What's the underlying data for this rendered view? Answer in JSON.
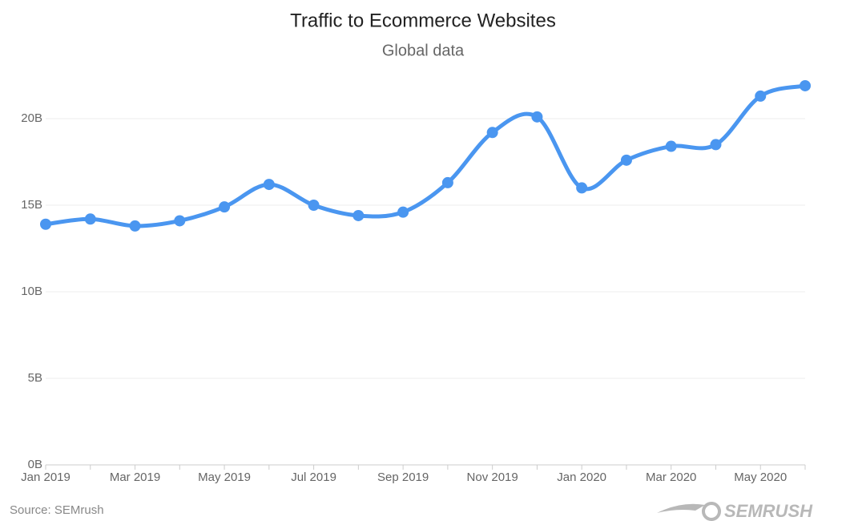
{
  "chart_data": {
    "type": "line",
    "title": "Traffic to Ecommerce Websites",
    "subtitle": "Global data",
    "categories": [
      "Jan 2019",
      null,
      "Mar 2019",
      null,
      "May 2019",
      null,
      "Jul 2019",
      null,
      "Sep 2019",
      null,
      "Nov 2019",
      null,
      "Jan 2020",
      null,
      "Mar 2020",
      null,
      "May 2020",
      null
    ],
    "series": [
      {
        "name": "Traffic",
        "color": "#4a96f0",
        "values": [
          13.9,
          14.2,
          13.8,
          14.1,
          14.9,
          16.2,
          15.0,
          14.4,
          14.6,
          16.3,
          19.2,
          20.1,
          16.0,
          17.6,
          18.4,
          18.5,
          21.3,
          21.9
        ]
      }
    ],
    "ylim": [
      0,
      22
    ],
    "yticks": [
      {
        "value": 0,
        "label": "0B"
      },
      {
        "value": 5,
        "label": "5B"
      },
      {
        "value": 10,
        "label": "10B"
      },
      {
        "value": 15,
        "label": "15B"
      },
      {
        "value": 20,
        "label": "20B"
      }
    ],
    "grid": true,
    "source": "Source: SEMrush",
    "brand": "SEMRUSH"
  }
}
